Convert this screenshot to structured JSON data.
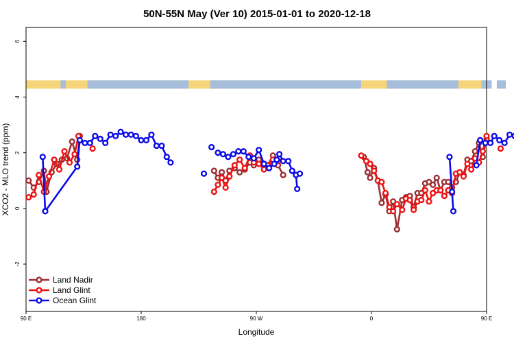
{
  "chart_data": {
    "type": "line",
    "title": "50N-55N May (Ver 10)   2015-01-01 to 2020-12-18",
    "xlabel": "Longitude",
    "ylabel": "XCO2 - MLO trend (ppm)",
    "xlim": [
      90,
      450
    ],
    "ylim": [
      -3.7,
      6.5
    ],
    "xticks": [
      {
        "value": 90,
        "label": "90 E"
      },
      {
        "value": 180,
        "label": "180"
      },
      {
        "value": 270,
        "label": "90 W"
      },
      {
        "value": 360,
        "label": "0"
      },
      {
        "value": 450,
        "label": "90 E"
      },
      {
        "value": 540,
        "label": "180"
      }
    ],
    "yticks": [
      {
        "value": -2,
        "label": "-2"
      },
      {
        "value": 0,
        "label": "0"
      },
      {
        "value": 2,
        "label": "2"
      },
      {
        "value": 4,
        "label": "4"
      },
      {
        "value": 6,
        "label": "6"
      }
    ],
    "legend_position": "bottom-left",
    "land_mask": {
      "y_center": 4.45,
      "land_color": "#f5d47a",
      "ocean_color": "#a6bedc"
    },
    "series": [
      {
        "name": "Land Nadir",
        "color": "#9b2d30",
        "segments": [
          [
            [
              92,
              1.0
            ],
            [
              96,
              0.75
            ],
            [
              100,
              0.95
            ],
            [
              104,
              1.35
            ],
            [
              106,
              0.6
            ],
            [
              110,
              1.3
            ],
            [
              114,
              1.6
            ],
            [
              118,
              1.75
            ],
            [
              122,
              1.8
            ],
            [
              126,
              2.4
            ],
            [
              130,
              1.75
            ],
            [
              132,
              2.6
            ]
          ],
          [
            [
              237,
              1.35
            ],
            [
              240,
              1.1
            ],
            [
              243,
              1.3
            ],
            [
              246,
              1.0
            ],
            [
              249,
              1.35
            ],
            [
              253,
              1.45
            ],
            [
              257,
              1.3
            ],
            [
              261,
              1.4
            ],
            [
              265,
              1.65
            ],
            [
              268,
              1.55
            ],
            [
              272,
              1.75
            ],
            [
              276,
              1.6
            ],
            [
              279,
              1.55
            ],
            [
              283,
              1.9
            ],
            [
              287,
              1.55
            ],
            [
              291,
              1.2
            ]
          ],
          [
            [
              354,
              1.85
            ],
            [
              357,
              1.3
            ],
            [
              359,
              1.1
            ],
            [
              362,
              1.45
            ],
            [
              365,
              1.0
            ],
            [
              368,
              0.2
            ],
            [
              371,
              0.5
            ],
            [
              374,
              -0.1
            ],
            [
              377,
              0.25
            ],
            [
              380,
              -0.75
            ],
            [
              384,
              0.3
            ],
            [
              387,
              0.4
            ],
            [
              390,
              0.45
            ],
            [
              393,
              0.05
            ],
            [
              396,
              0.55
            ],
            [
              399,
              0.55
            ],
            [
              402,
              0.9
            ],
            [
              405,
              0.95
            ],
            [
              408,
              0.85
            ],
            [
              411,
              1.1
            ],
            [
              414,
              0.65
            ],
            [
              417,
              0.95
            ],
            [
              420,
              0.95
            ],
            [
              423,
              0.75
            ],
            [
              426,
              0.95
            ],
            [
              429,
              1.3
            ],
            [
              432,
              1.2
            ],
            [
              435,
              1.75
            ],
            [
              438,
              1.7
            ],
            [
              441,
              2.05
            ],
            [
              444,
              2.35
            ],
            [
              447,
              1.85
            ],
            [
              450,
              2.5
            ]
          ]
        ]
      },
      {
        "name": "Land Glint",
        "color": "#ee1111",
        "segments": [
          [
            [
              92,
              0.4
            ],
            [
              96,
              0.5
            ],
            [
              100,
              1.2
            ],
            [
              104,
              0.6
            ],
            [
              108,
              1.15
            ],
            [
              112,
              1.75
            ],
            [
              116,
              1.4
            ],
            [
              120,
              2.05
            ],
            [
              124,
              1.65
            ],
            [
              128,
              1.95
            ],
            [
              131,
              2.6
            ]
          ],
          [
            [
              142,
              2.15
            ]
          ],
          [
            [
              237,
              0.6
            ],
            [
              240,
              0.85
            ],
            [
              243,
              1.1
            ],
            [
              246,
              0.75
            ],
            [
              249,
              1.15
            ],
            [
              253,
              1.55
            ],
            [
              257,
              1.75
            ],
            [
              261,
              1.45
            ],
            [
              265,
              1.9
            ],
            [
              268,
              1.65
            ],
            [
              272,
              1.6
            ],
            [
              276,
              1.4
            ],
            [
              279,
              1.55
            ],
            [
              283,
              1.75
            ],
            [
              287,
              1.7
            ]
          ],
          [
            [
              352,
              1.9
            ],
            [
              356,
              1.7
            ],
            [
              359,
              1.6
            ],
            [
              362,
              1.35
            ],
            [
              365,
              1.0
            ],
            [
              368,
              0.95
            ],
            [
              371,
              0.55
            ],
            [
              374,
              0.05
            ],
            [
              377,
              -0.1
            ],
            [
              380,
              0.15
            ],
            [
              384,
              -0.05
            ],
            [
              387,
              0.35
            ],
            [
              390,
              0.3
            ],
            [
              393,
              -0.05
            ],
            [
              396,
              0.25
            ],
            [
              399,
              0.3
            ],
            [
              402,
              0.65
            ],
            [
              405,
              0.25
            ],
            [
              408,
              0.55
            ],
            [
              411,
              0.65
            ],
            [
              414,
              0.65
            ],
            [
              417,
              0.45
            ],
            [
              420,
              0.65
            ],
            [
              423,
              0.55
            ],
            [
              426,
              1.25
            ],
            [
              429,
              1.3
            ],
            [
              432,
              1.15
            ],
            [
              435,
              1.6
            ],
            [
              438,
              1.4
            ],
            [
              441,
              1.8
            ],
            [
              444,
              1.65
            ],
            [
              447,
              2.05
            ],
            [
              450,
              2.6
            ]
          ],
          [
            [
              461,
              2.15
            ]
          ]
        ]
      },
      {
        "name": "Ocean Glint",
        "color": "#0a0ae6",
        "segments": [
          [
            [
              103,
              1.85
            ],
            [
              105,
              -0.1
            ],
            [
              130,
              1.5
            ],
            [
              132,
              2.45
            ],
            [
              136,
              2.35
            ],
            [
              140,
              2.35
            ],
            [
              144,
              2.6
            ],
            [
              148,
              2.5
            ],
            [
              152,
              2.35
            ],
            [
              156,
              2.65
            ],
            [
              160,
              2.6
            ],
            [
              164,
              2.75
            ],
            [
              168,
              2.65
            ],
            [
              172,
              2.65
            ],
            [
              176,
              2.6
            ],
            [
              180,
              2.45
            ],
            [
              184,
              2.45
            ],
            [
              188,
              2.65
            ],
            [
              192,
              2.25
            ],
            [
              196,
              2.25
            ],
            [
              200,
              1.85
            ],
            [
              203,
              1.65
            ]
          ],
          [
            [
              229,
              1.25
            ]
          ],
          [
            [
              235,
              2.2
            ]
          ],
          [
            [
              240,
              2.0
            ],
            [
              244,
              1.95
            ],
            [
              248,
              1.85
            ],
            [
              252,
              1.95
            ],
            [
              256,
              2.05
            ],
            [
              260,
              2.05
            ],
            [
              264,
              1.85
            ],
            [
              268,
              1.8
            ],
            [
              272,
              2.1
            ],
            [
              276,
              1.6
            ],
            [
              280,
              1.45
            ],
            [
              284,
              1.6
            ]
          ],
          [
            [
              286,
              1.75
            ],
            [
              288,
              1.95
            ],
            [
              291,
              1.7
            ],
            [
              295,
              1.7
            ],
            [
              298,
              1.35
            ],
            [
              301,
              1.2
            ],
            [
              302,
              0.7
            ]
          ],
          [
            [
              304,
              1.25
            ]
          ],
          [
            [
              421,
              1.85
            ],
            [
              423,
              0.6
            ],
            [
              424,
              -0.1
            ]
          ],
          [
            [
              442,
              1.55
            ],
            [
              445,
              2.45
            ],
            [
              449,
              2.35
            ],
            [
              453,
              2.35
            ],
            [
              456,
              2.6
            ],
            [
              460,
              2.45
            ],
            [
              464,
              2.35
            ],
            [
              468,
              2.65
            ],
            [
              472,
              2.6
            ]
          ]
        ]
      }
    ]
  }
}
